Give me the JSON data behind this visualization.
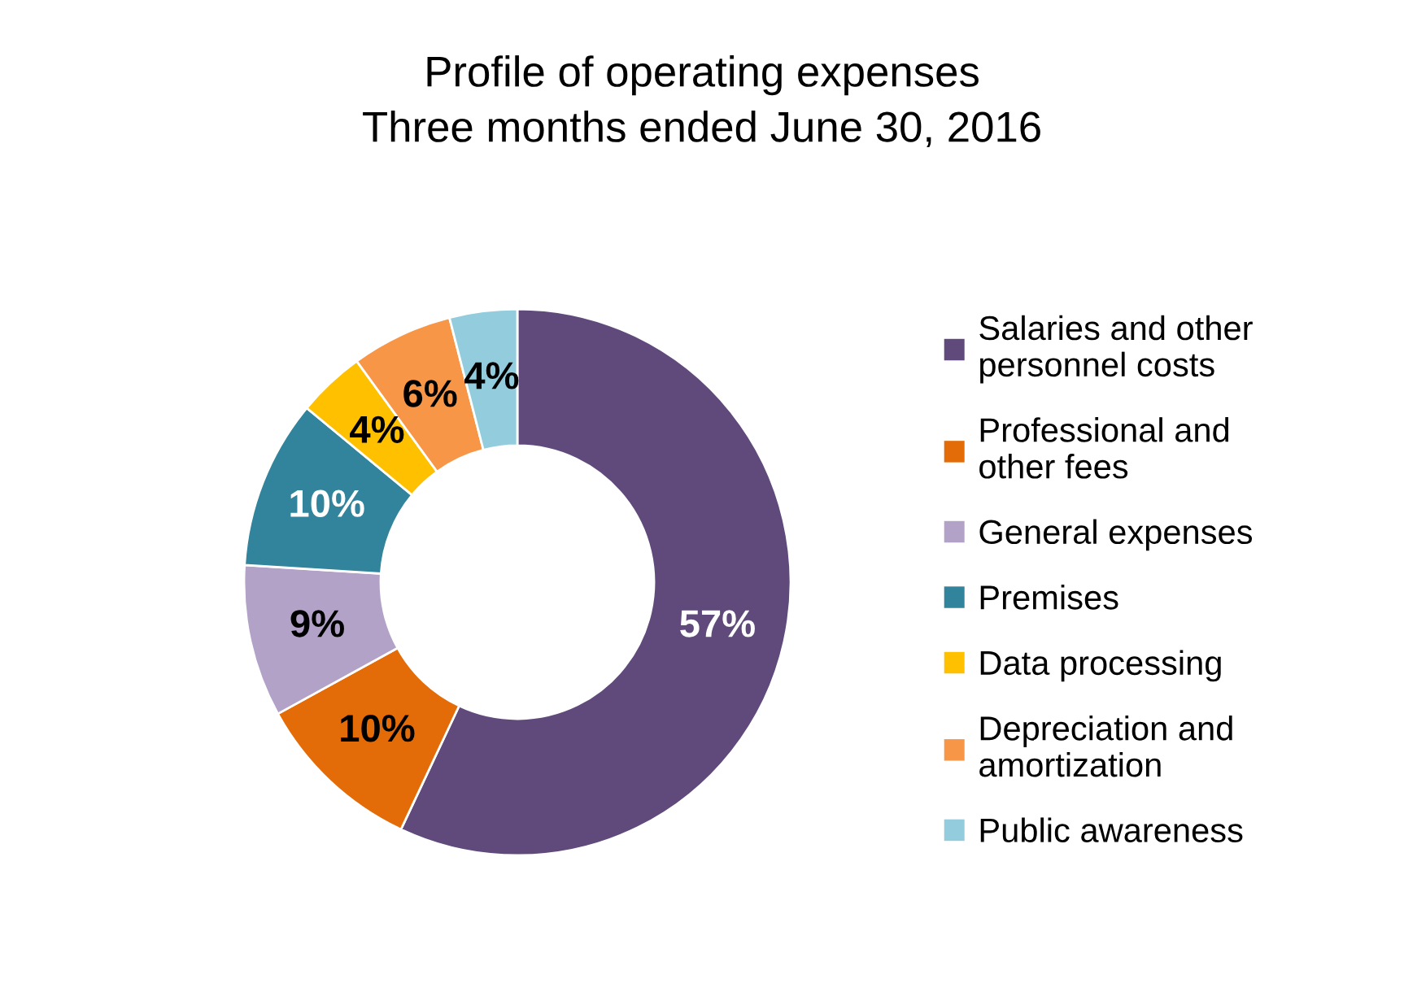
{
  "chart_data": {
    "type": "donut",
    "title": "Profile of operating expenses",
    "subtitle": "Three months ended June 30, 2016",
    "categories": [
      "Salaries and other personnel costs",
      "Professional and other fees",
      "General expenses",
      "Premises",
      "Data processing",
      "Depreciation and amortization",
      "Public awareness"
    ],
    "values": [
      57,
      10,
      9,
      10,
      4,
      6,
      4
    ],
    "colors": [
      "#604a7b",
      "#e36c09",
      "#b3a2c7",
      "#31849b",
      "#ffc000",
      "#f79646",
      "#93cddd"
    ],
    "value_labels": [
      "57%",
      "10%",
      "9%",
      "10%",
      "4%",
      "6%",
      "4%"
    ],
    "legend": "right"
  }
}
